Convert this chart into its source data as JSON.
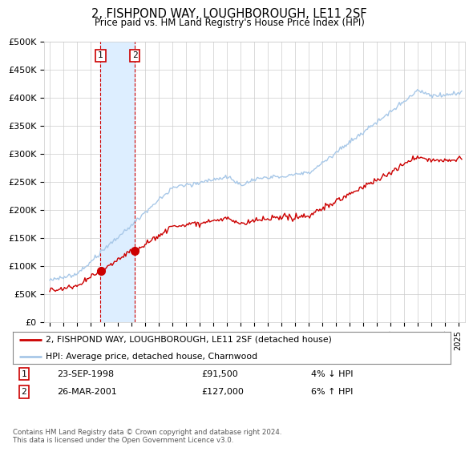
{
  "title": "2, FISHPOND WAY, LOUGHBOROUGH, LE11 2SF",
  "subtitle": "Price paid vs. HM Land Registry's House Price Index (HPI)",
  "ylabel_ticks": [
    "£0",
    "£50K",
    "£100K",
    "£150K",
    "£200K",
    "£250K",
    "£300K",
    "£350K",
    "£400K",
    "£450K",
    "£500K"
  ],
  "yvalues": [
    0,
    50000,
    100000,
    150000,
    200000,
    250000,
    300000,
    350000,
    400000,
    450000,
    500000
  ],
  "xlim_start": 1994.6,
  "xlim_end": 2025.5,
  "ylim_min": 0,
  "ylim_max": 500000,
  "sale1_date": 1998.73,
  "sale1_price": 91500,
  "sale1_label": "1",
  "sale2_date": 2001.24,
  "sale2_price": 127000,
  "sale2_label": "2",
  "hpi_color": "#a8c8e8",
  "price_color": "#cc0000",
  "shade_color": "#ddeeff",
  "legend_line1": "2, FISHPOND WAY, LOUGHBOROUGH, LE11 2SF (detached house)",
  "legend_line2": "HPI: Average price, detached house, Charnwood",
  "table_row1_num": "1",
  "table_row1_date": "23-SEP-1998",
  "table_row1_price": "£91,500",
  "table_row1_hpi": "4% ↓ HPI",
  "table_row2_num": "2",
  "table_row2_date": "26-MAR-2001",
  "table_row2_price": "£127,000",
  "table_row2_hpi": "6% ↑ HPI",
  "footnote": "Contains HM Land Registry data © Crown copyright and database right 2024.\nThis data is licensed under the Open Government Licence v3.0.",
  "background_color": "#ffffff",
  "grid_color": "#cccccc"
}
